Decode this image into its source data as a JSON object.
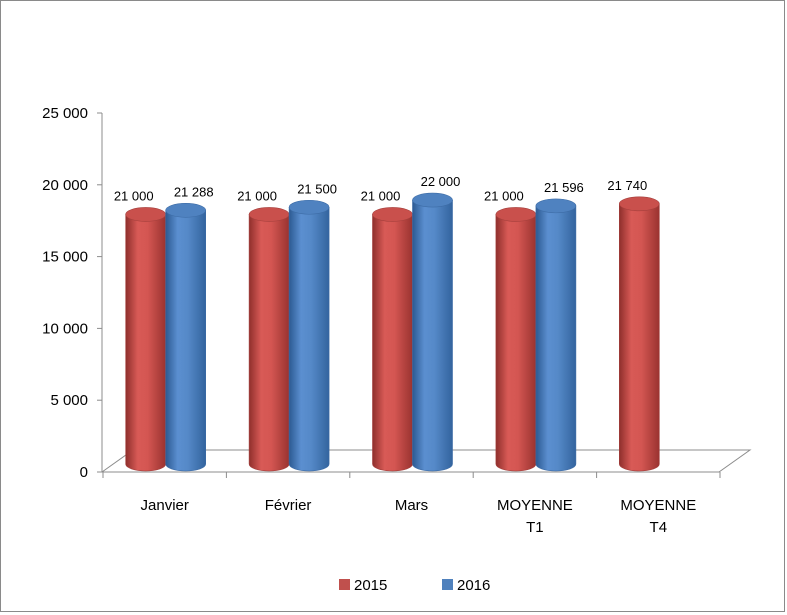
{
  "chart_data": {
    "type": "bar",
    "categories": [
      [
        "Janvier"
      ],
      [
        "Février"
      ],
      [
        "Mars"
      ],
      [
        "MOYENNE",
        "T1"
      ],
      [
        "MOYENNE",
        "T4"
      ]
    ],
    "series": [
      {
        "name": "2015",
        "color": "#C0504D",
        "values": [
          21000,
          21000,
          21000,
          21000,
          21740
        ],
        "labels": [
          "21 000",
          "21 000",
          "21 000",
          "21 000",
          "21 740"
        ]
      },
      {
        "name": "2016",
        "color": "#4F81BD",
        "values": [
          21288,
          21500,
          22000,
          21596,
          null
        ],
        "labels": [
          "21 288",
          "21 500",
          "22 000",
          "21 596",
          ""
        ]
      }
    ],
    "yticks": [
      0,
      5000,
      10000,
      15000,
      20000,
      25000
    ],
    "ytick_labels": [
      "0",
      "5 000",
      "10 000",
      "15 000",
      "20 000",
      "25 000"
    ],
    "ylim": [
      0,
      25000
    ],
    "title": "",
    "xlabel": "",
    "ylabel": "",
    "grid": false,
    "legend_position": "bottom",
    "style": "3d-cylinder"
  }
}
